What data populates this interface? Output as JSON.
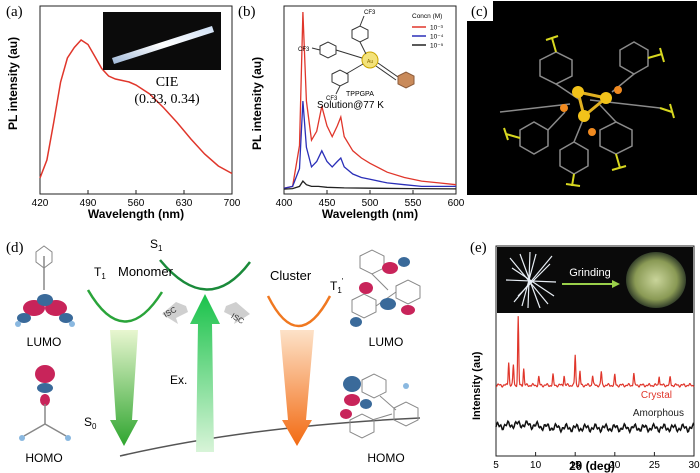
{
  "panel_a": {
    "label": "(a)",
    "ylabel": "PL intensity (au)",
    "xlabel": "Wavelength (nm)",
    "cie_label": "CIE",
    "cie_value": "(0.33, 0.34)",
    "line_color": "#e0362b"
  },
  "panel_b": {
    "label": "(b)",
    "ylabel": "PL intensity (au)",
    "xlabel": "Wavelength (nm)",
    "compound": "TPPGPA",
    "condition": "Solution@77 K",
    "legend_title": "Concn (M)",
    "metal": "Au",
    "substituent": "CF3"
  },
  "panel_c": {
    "label": "(c)"
  },
  "panel_d": {
    "label": "(d)",
    "t1": "T",
    "t1_sub": "1",
    "t1p": "T",
    "t1p_sub": "1",
    "t1p_sup": "'",
    "s1": "S",
    "s1_sub": "1",
    "s0": "S",
    "s0_sub": "0",
    "monomer": "Monomer",
    "cluster": "Cluster",
    "isc_left": "ISC",
    "isc_right": "ISC",
    "ex": "Ex.",
    "lumo_left": "LUMO",
    "homo_left": "HOMO",
    "lumo_right": "LUMO",
    "homo_right": "HOMO"
  },
  "panel_e": {
    "label": "(e)",
    "grinding": "Grinding",
    "ylabel": "Intensity (au)",
    "xlabel": "2θ (deg)",
    "crystal": "Crystal",
    "amorphous": "Amorphous",
    "crystal_color": "#e0362b"
  },
  "chart_data": [
    {
      "type": "line",
      "panel": "a",
      "xlabel": "Wavelength (nm)",
      "ylabel": "PL intensity (au)",
      "xlim": [
        420,
        700
      ],
      "x_ticks": [
        "420",
        "490",
        "560",
        "630",
        "700"
      ],
      "series": [
        {
          "x": [
            420,
            430,
            440,
            450,
            460,
            470,
            480,
            490,
            500,
            510,
            520,
            530,
            540,
            550,
            560,
            580,
            600,
            620,
            640,
            660,
            680,
            700
          ],
          "y": [
            0.08,
            0.2,
            0.45,
            0.72,
            0.88,
            0.95,
            1.0,
            0.97,
            0.89,
            0.81,
            0.76,
            0.74,
            0.73,
            0.72,
            0.7,
            0.64,
            0.55,
            0.45,
            0.34,
            0.24,
            0.16,
            0.11
          ]
        }
      ]
    },
    {
      "type": "line",
      "panel": "b",
      "xlabel": "Wavelength (nm)",
      "ylabel": "PL intensity (au)",
      "xlim": [
        400,
        600
      ],
      "x_ticks": [
        "400",
        "450",
        "500",
        "550",
        "600"
      ],
      "legend_title": "Concn (M)",
      "series": [
        {
          "name": "10⁻³",
          "color": "#e0362b",
          "x": [
            400,
            410,
            418,
            422,
            426,
            432,
            438,
            444,
            450,
            456,
            462,
            466,
            470,
            480,
            490,
            500,
            520,
            540,
            560,
            580,
            600
          ],
          "y": [
            0.01,
            0.02,
            0.25,
            1.0,
            0.5,
            0.28,
            0.33,
            0.47,
            0.36,
            0.3,
            0.36,
            0.41,
            0.3,
            0.22,
            0.18,
            0.15,
            0.1,
            0.07,
            0.05,
            0.04,
            0.03
          ]
        },
        {
          "name": "10⁻⁴",
          "color": "#2a2fb8",
          "x": [
            400,
            410,
            418,
            422,
            426,
            432,
            438,
            444,
            450,
            456,
            462,
            466,
            470,
            480,
            490,
            500,
            520,
            540,
            560,
            580,
            600
          ],
          "y": [
            0.01,
            0.02,
            0.12,
            0.5,
            0.24,
            0.13,
            0.16,
            0.22,
            0.16,
            0.13,
            0.16,
            0.18,
            0.13,
            0.09,
            0.07,
            0.06,
            0.04,
            0.03,
            0.02,
            0.02,
            0.02
          ]
        },
        {
          "name": "10⁻⁵",
          "color": "#222222",
          "x": [
            400,
            410,
            418,
            422,
            426,
            432,
            440,
            450,
            470,
            500,
            550,
            600
          ],
          "y": [
            0.005,
            0.008,
            0.02,
            0.05,
            0.03,
            0.02,
            0.02,
            0.015,
            0.012,
            0.01,
            0.008,
            0.006
          ]
        }
      ]
    },
    {
      "type": "line",
      "panel": "e",
      "xlabel": "2θ (deg)",
      "ylabel": "Intensity (au)",
      "xlim": [
        5,
        30
      ],
      "x_ticks": [
        "5",
        "10",
        "15",
        "20",
        "25",
        "30"
      ],
      "series": [
        {
          "name": "Crystal",
          "color": "#e0362b",
          "peaks": [
            [
              6.6,
              0.35
            ],
            [
              7.2,
              0.3
            ],
            [
              7.8,
              1.0
            ],
            [
              8.5,
              0.25
            ],
            [
              10.4,
              0.12
            ],
            [
              12.2,
              0.15
            ],
            [
              13.6,
              0.15
            ],
            [
              15.0,
              0.45
            ],
            [
              15.6,
              0.2
            ],
            [
              17.2,
              0.15
            ],
            [
              18.3,
              0.2
            ],
            [
              20.0,
              0.15
            ],
            [
              22.4,
              0.18
            ],
            [
              25.6,
              0.15
            ],
            [
              27.0,
              0.12
            ]
          ]
        },
        {
          "name": "Amorphous",
          "color": "#111111",
          "level": 0.1
        }
      ]
    }
  ]
}
